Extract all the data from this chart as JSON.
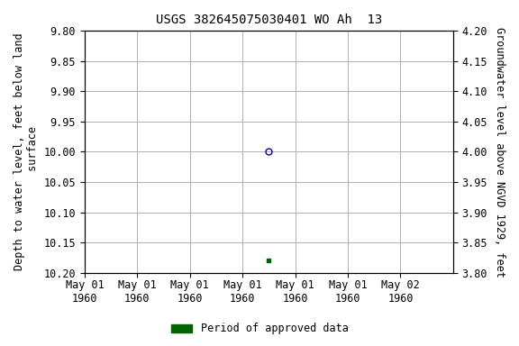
{
  "title": "USGS 382645075030401 WO Ah  13",
  "ylabel_left": "Depth to water level, feet below land\n surface",
  "ylabel_right": "Groundwater level above NGVD 1929, feet",
  "ylim_left": [
    9.8,
    10.2
  ],
  "ylim_right": [
    3.8,
    4.2
  ],
  "yticks_left": [
    9.8,
    9.85,
    9.9,
    9.95,
    10.0,
    10.05,
    10.1,
    10.15,
    10.2
  ],
  "yticks_right": [
    4.2,
    4.15,
    4.1,
    4.05,
    4.0,
    3.95,
    3.9,
    3.85,
    3.8
  ],
  "open_circle_x_hours": 84,
  "open_circle_value": 10.0,
  "filled_square_x_hours": 84,
  "filled_square_value": 10.18,
  "open_circle_color": "#0000bb",
  "filled_square_color": "#006400",
  "background_color": "#ffffff",
  "grid_color": "#b0b0b0",
  "title_fontsize": 10,
  "axis_label_fontsize": 8.5,
  "tick_fontsize": 8.5,
  "legend_label": "Period of approved data",
  "legend_color": "#006400",
  "xaxis_start_hours": 0,
  "xaxis_end_hours": 168,
  "xtick_hours": [
    0,
    24,
    48,
    72,
    96,
    120,
    144
  ],
  "xtick_labels": [
    "May 01\n1960",
    "May 01\n1960",
    "May 01\n1960",
    "May 01\n1960",
    "May 01\n1960",
    "May 01\n1960",
    "May 02\n1960"
  ]
}
